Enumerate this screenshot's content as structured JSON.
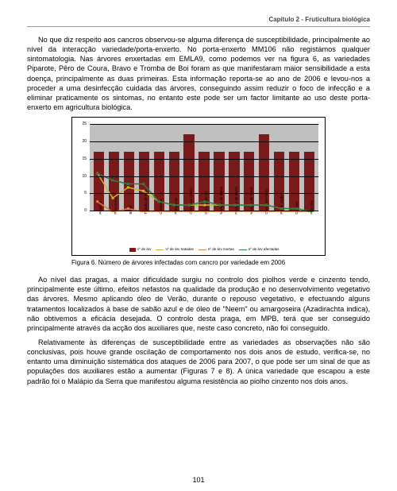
{
  "header": "Capítulo 2 - Fruticultura biológica",
  "para1": "No que diz respeito aos cancros observou-se alguma diferença de susceptibilidade, principalmente ao nível da interacção variedade/porta-enxerto. No porta-enxerto MM106 não registámos qualquer sintomatologia. Nas árvores enxertadas em EMLA9, como podemos ver na figura 6, as variedades Piparote, Pêro de Coura, Bravo e Tromba de Boi foram as que manifestaram maior sensibilidade a esta doença, principalmente as duas primeiras. Esta informação reporta-se ao ano de 2006 e levou-nos a proceder a uma desinfecção cuidada das árvores, conseguindo assim reduzir o foco de infecção e a eliminar praticamente os sintomas, no entanto este pode ser um factor limitante ao uso deste porta-enxerto em agricultura biológica.",
  "chart": {
    "type": "bar-with-lines",
    "background_color": "#c0c0c0",
    "grid_color": "#000000",
    "border_color": "#000000",
    "ylim": [
      0,
      25
    ],
    "ytick_step": 5,
    "categories": [
      "Piparote",
      "Pêro-Coura",
      "Bravo",
      "Tromba de Boi",
      "Camoesa",
      "Porta-Loja",
      "Camoesa Chata",
      "Durázio do RC",
      "Malápio de Batva",
      "Focinho de Burro",
      "Malápio de Serra",
      "Camoane Ferro",
      "Pardo Lindo",
      "Durázia",
      "Pêro Rei"
    ],
    "bars": {
      "values": [
        17,
        17,
        17,
        17,
        17,
        17,
        22,
        17,
        17,
        17,
        17,
        22,
        17,
        17,
        17
      ],
      "color": "#7a1a1a",
      "label": "nº de árv"
    },
    "lines": [
      {
        "label": "nº de árv tratadas",
        "color": "#c8b430",
        "marker": "square",
        "values": [
          11,
          4,
          7,
          6,
          3,
          2,
          2,
          2,
          2,
          2,
          2,
          2,
          1,
          1,
          0
        ]
      },
      {
        "label": "nº de árv mortas",
        "color": "#d97f3a",
        "marker": "triangle",
        "values": [
          3,
          0,
          1,
          0,
          0,
          0,
          0,
          0,
          0,
          0,
          0,
          0,
          0,
          0,
          0
        ]
      },
      {
        "label": "nº de árv afectadas",
        "color": "#2f7a3f",
        "marker": "diamond",
        "values": [
          11,
          9,
          8,
          8,
          3,
          2,
          2,
          3,
          2,
          2,
          2,
          2,
          1,
          1,
          0
        ]
      }
    ],
    "line_width": 1.5,
    "bar_width": 0.7,
    "legend_position": "bottom",
    "font_size_axis": 5
  },
  "caption": "Figura 6. Número de árvores infectadas com cancro por variedade em 2006",
  "para2": "Ao nível das pragas, a maior dificuldade surgiu no controlo dos piolhos verde e cinzento tendo, principalmente este último, efeitos nefastos na qualidade da produção e no desenvolvimento vegetativo das árvores. Mesmo aplicando óleo de Verão, durante o repouso vegetativo, e efectuando alguns tratamentos localizados à base de sabão azul e de óleo de \"Neem\" ou amargoseira (Azadirachta indica), não obtivemos a eficácia desejada. O controlo desta praga, em MPB, terá que ser conseguido principalmente através da acção dos auxiliares que, neste caso concreto, não foi conseguido.",
  "para3": "Relativamente às diferenças de susceptibilidade entre as variedades as observações não são conclusivas, pois houve grande oscilação de comportamento nos dois anos de estudo, verifica-se, no entanto uma diminuição sistemática dos ataques de 2006 para 2007, o que pode ser um sinal de que as populações dos auxiliares estão a aumentar (Figuras 7 e 8). A única variedade que escapou a este padrão foi o Malápio da Serra que manifestou alguma resistência ao piolho cinzento nos dois anos.",
  "pagenum": "101"
}
